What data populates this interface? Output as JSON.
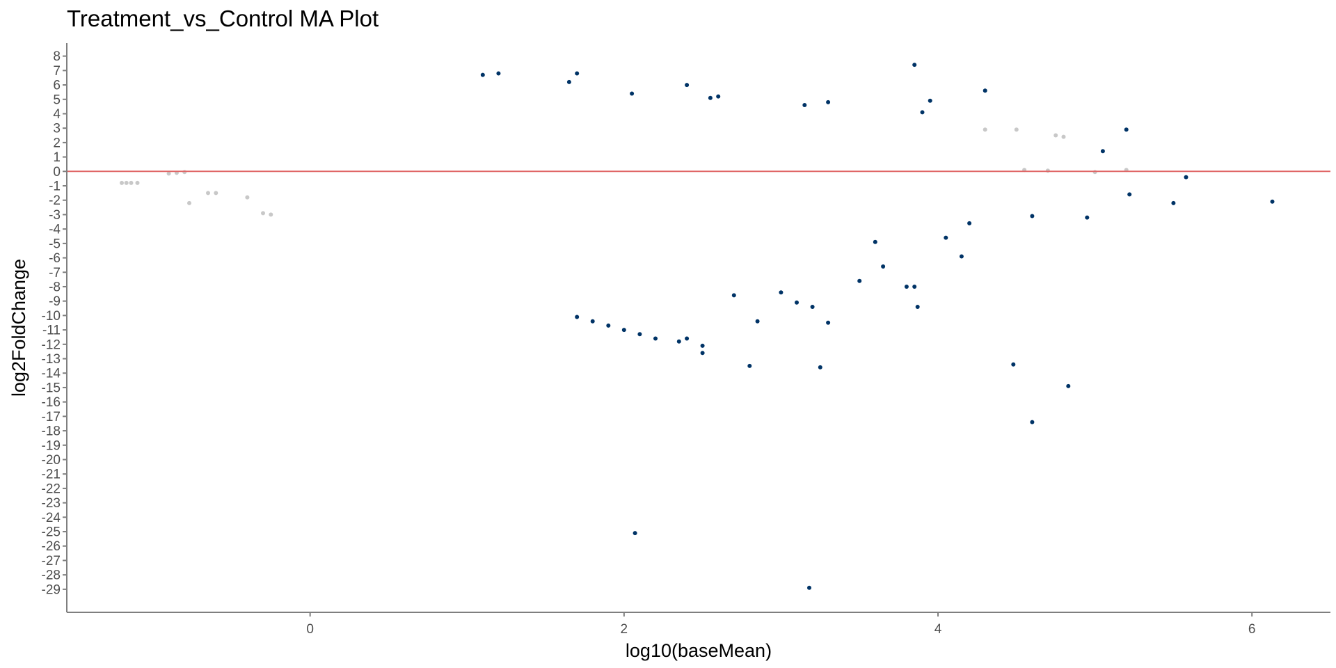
{
  "chart_data": {
    "type": "scatter",
    "title": "Treatment_vs_Control MA Plot",
    "xlabel": "log10(baseMean)",
    "ylabel": "log2FoldChange",
    "xlim": [
      -1.55,
      6.5
    ],
    "ylim": [
      -30.6,
      8.9
    ],
    "x_ticks": [
      0,
      2,
      4,
      6
    ],
    "y_ticks": [
      8,
      7,
      6,
      5,
      4,
      3,
      2,
      1,
      0,
      -1,
      -2,
      -3,
      -4,
      -5,
      -6,
      -7,
      -8,
      -9,
      -10,
      -11,
      -12,
      -13,
      -14,
      -15,
      -16,
      -17,
      -18,
      -19,
      -20,
      -21,
      -22,
      -23,
      -24,
      -25,
      -26,
      -27,
      -28,
      -29
    ],
    "reference_line": {
      "y": 0,
      "color": "#e06666"
    },
    "grid": false,
    "legend": "none",
    "colors": {
      "significant": "#003366",
      "not_significant": "#c8c8c8"
    },
    "series": [
      {
        "key": "not_significant",
        "values": [
          [
            -1.2,
            -0.8
          ],
          [
            -1.17,
            -0.8
          ],
          [
            -1.14,
            -0.8
          ],
          [
            -1.1,
            -0.8
          ],
          [
            -0.9,
            -0.15
          ],
          [
            -0.85,
            -0.1
          ],
          [
            -0.8,
            -0.05
          ],
          [
            -0.77,
            -2.2
          ],
          [
            -0.65,
            -1.5
          ],
          [
            -0.6,
            -1.5
          ],
          [
            -0.4,
            -1.8
          ],
          [
            -0.3,
            -2.9
          ],
          [
            -0.25,
            -3.0
          ],
          [
            4.3,
            2.9
          ],
          [
            4.5,
            2.9
          ],
          [
            4.75,
            2.5
          ],
          [
            4.8,
            2.4
          ],
          [
            4.55,
            0.1
          ],
          [
            4.7,
            0.05
          ],
          [
            5.0,
            -0.05
          ],
          [
            5.2,
            0.1
          ]
        ]
      },
      {
        "key": "significant",
        "values": [
          [
            3.85,
            7.4
          ],
          [
            1.2,
            6.8
          ],
          [
            1.1,
            6.7
          ],
          [
            1.7,
            6.8
          ],
          [
            1.65,
            6.2
          ],
          [
            2.4,
            6.0
          ],
          [
            2.6,
            5.2
          ],
          [
            2.55,
            5.1
          ],
          [
            2.05,
            5.4
          ],
          [
            3.3,
            4.8
          ],
          [
            3.15,
            4.6
          ],
          [
            4.3,
            5.6
          ],
          [
            3.95,
            4.9
          ],
          [
            3.9,
            4.1
          ],
          [
            5.2,
            2.9
          ],
          [
            5.05,
            1.4
          ],
          [
            5.58,
            -0.4
          ],
          [
            5.22,
            -1.6
          ],
          [
            5.5,
            -2.2
          ],
          [
            6.13,
            -2.1
          ],
          [
            4.95,
            -3.2
          ],
          [
            4.6,
            -3.1
          ],
          [
            4.2,
            -3.6
          ],
          [
            4.15,
            -5.9
          ],
          [
            4.05,
            -4.6
          ],
          [
            3.6,
            -4.9
          ],
          [
            3.65,
            -6.6
          ],
          [
            3.5,
            -7.6
          ],
          [
            3.85,
            -8.0
          ],
          [
            3.87,
            -9.4
          ],
          [
            3.8,
            -8.0
          ],
          [
            3.0,
            -8.4
          ],
          [
            3.2,
            -9.4
          ],
          [
            3.1,
            -9.1
          ],
          [
            3.3,
            -10.5
          ],
          [
            2.85,
            -10.4
          ],
          [
            2.7,
            -8.6
          ],
          [
            2.8,
            -13.5
          ],
          [
            3.25,
            -13.6
          ],
          [
            4.48,
            -13.4
          ],
          [
            4.83,
            -14.9
          ],
          [
            4.6,
            -17.4
          ],
          [
            2.07,
            -25.1
          ],
          [
            3.18,
            -28.9
          ],
          [
            2.4,
            -11.6
          ],
          [
            2.5,
            -12.6
          ],
          [
            2.5,
            -12.1
          ],
          [
            2.35,
            -11.8
          ],
          [
            2.2,
            -11.6
          ],
          [
            2.1,
            -11.3
          ],
          [
            2.0,
            -11.0
          ],
          [
            1.9,
            -10.7
          ],
          [
            1.8,
            -10.4
          ],
          [
            1.7,
            -10.1
          ]
        ]
      }
    ]
  }
}
